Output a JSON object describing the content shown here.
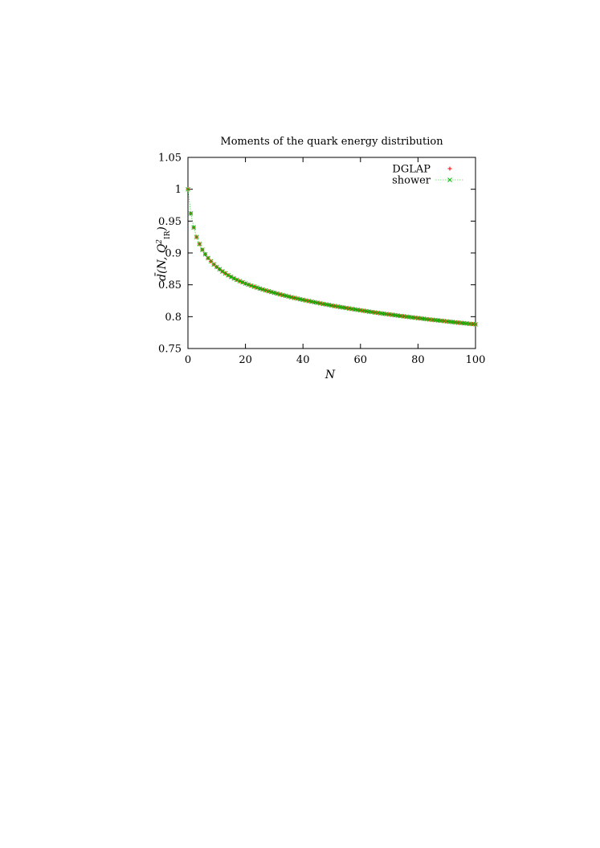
{
  "chart_data": {
    "type": "scatter",
    "title": "Moments of the quark energy distribution",
    "xlabel": "N",
    "ylabel": "d̄(N, Q²IR)",
    "ylabel_parts": {
      "main": "d̄(N, Q",
      "sup": "2",
      "sub": "IR",
      "close": ")"
    },
    "xlim": [
      0,
      100
    ],
    "ylim": [
      0.75,
      1.05
    ],
    "xticks": [
      0,
      20,
      40,
      60,
      80,
      100
    ],
    "yticks": [
      0.75,
      0.8,
      0.85,
      0.9,
      0.95,
      1,
      1.05
    ],
    "ytick_labels": [
      "0.75",
      "0.8",
      "0.85",
      "0.9",
      "0.95",
      "1",
      "1.05"
    ],
    "grid": false,
    "legend_position": "top-right",
    "x": [
      0,
      1,
      2,
      3,
      4,
      5,
      6,
      7,
      8,
      9,
      10,
      11,
      12,
      13,
      14,
      15,
      16,
      17,
      18,
      19,
      20,
      21,
      22,
      23,
      24,
      25,
      26,
      27,
      28,
      29,
      30,
      31,
      32,
      33,
      34,
      35,
      36,
      37,
      38,
      39,
      40,
      41,
      42,
      43,
      44,
      45,
      46,
      47,
      48,
      49,
      50,
      51,
      52,
      53,
      54,
      55,
      56,
      57,
      58,
      59,
      60,
      61,
      62,
      63,
      64,
      65,
      66,
      67,
      68,
      69,
      70,
      71,
      72,
      73,
      74,
      75,
      76,
      77,
      78,
      79,
      80,
      81,
      82,
      83,
      84,
      85,
      86,
      87,
      88,
      89,
      90,
      91,
      92,
      93,
      94,
      95,
      96,
      97,
      98,
      99,
      100
    ],
    "series": [
      {
        "name": "DGLAP",
        "color": "#ff0000",
        "marker": "plus",
        "values": [
          1.0,
          0.962,
          0.94,
          0.925,
          0.914,
          0.905,
          0.898,
          0.892,
          0.887,
          0.882,
          0.878,
          0.8745,
          0.871,
          0.868,
          0.865,
          0.8625,
          0.86,
          0.8578,
          0.8558,
          0.854,
          0.852,
          0.8503,
          0.8487,
          0.8471,
          0.8456,
          0.8441,
          0.8427,
          0.8413,
          0.84,
          0.8387,
          0.8374,
          0.8362,
          0.835,
          0.8338,
          0.8327,
          0.8316,
          0.8305,
          0.8294,
          0.8284,
          0.8274,
          0.8264,
          0.8254,
          0.8245,
          0.8236,
          0.8227,
          0.8218,
          0.8209,
          0.82,
          0.8192,
          0.8184,
          0.8175,
          0.8167,
          0.8159,
          0.8151,
          0.8144,
          0.8136,
          0.8129,
          0.8121,
          0.8114,
          0.8107,
          0.81,
          0.8093,
          0.8086,
          0.8079,
          0.8073,
          0.8066,
          0.806,
          0.8053,
          0.8047,
          0.8041,
          0.8035,
          0.8029,
          0.8023,
          0.8017,
          0.8011,
          0.8005,
          0.7999,
          0.7994,
          0.7988,
          0.7983,
          0.7977,
          0.7972,
          0.7966,
          0.7961,
          0.7956,
          0.7951,
          0.7946,
          0.7941,
          0.7936,
          0.7931,
          0.7926,
          0.7921,
          0.7916,
          0.7911,
          0.7907,
          0.7902,
          0.7897,
          0.7893,
          0.7888,
          0.7884,
          0.788
        ]
      },
      {
        "name": "shower",
        "color": "#00c000",
        "marker": "cross",
        "line": true,
        "values": [
          1.0,
          0.962,
          0.94,
          0.925,
          0.914,
          0.905,
          0.898,
          0.892,
          0.887,
          0.882,
          0.878,
          0.8745,
          0.871,
          0.868,
          0.865,
          0.8625,
          0.86,
          0.8578,
          0.8558,
          0.854,
          0.852,
          0.8503,
          0.8487,
          0.8471,
          0.8456,
          0.8441,
          0.8427,
          0.8413,
          0.84,
          0.8387,
          0.8374,
          0.8362,
          0.835,
          0.8338,
          0.8327,
          0.8316,
          0.8305,
          0.8294,
          0.8284,
          0.8274,
          0.8264,
          0.8254,
          0.8245,
          0.8236,
          0.8227,
          0.8218,
          0.8209,
          0.82,
          0.8192,
          0.8184,
          0.8175,
          0.8167,
          0.8159,
          0.8151,
          0.8144,
          0.8136,
          0.8129,
          0.8121,
          0.8114,
          0.8107,
          0.81,
          0.8093,
          0.8086,
          0.8079,
          0.8073,
          0.8066,
          0.806,
          0.8053,
          0.8047,
          0.8041,
          0.8035,
          0.8029,
          0.8023,
          0.8017,
          0.8011,
          0.8005,
          0.7999,
          0.7994,
          0.7988,
          0.7983,
          0.7977,
          0.7972,
          0.7966,
          0.7961,
          0.7956,
          0.7951,
          0.7946,
          0.7941,
          0.7936,
          0.7931,
          0.7926,
          0.7921,
          0.7916,
          0.7911,
          0.7907,
          0.7902,
          0.7897,
          0.7893,
          0.7888,
          0.7884,
          0.788
        ]
      }
    ]
  }
}
